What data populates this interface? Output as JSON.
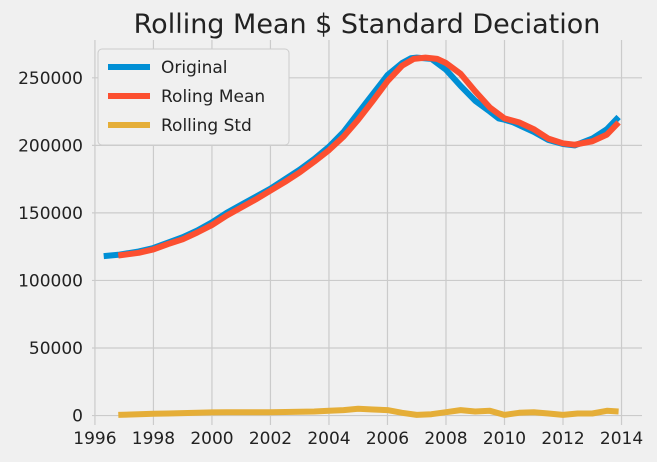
{
  "chart_data": {
    "type": "line",
    "title": "Rolling Mean $ Standard Deciation",
    "xlabel": "",
    "ylabel": "",
    "xlim": [
      1995.9,
      2014.7
    ],
    "ylim": [
      -7000,
      278000
    ],
    "grid": true,
    "legend_position": "upper-left",
    "xticks": [
      1996,
      1998,
      2000,
      2002,
      2004,
      2006,
      2008,
      2010,
      2012,
      2014
    ],
    "xtick_labels": [
      "1996",
      "1998",
      "2000",
      "2002",
      "2004",
      "2006",
      "2008",
      "2010",
      "2012",
      "2014"
    ],
    "yticks": [
      0,
      50000,
      100000,
      150000,
      200000,
      250000
    ],
    "ytick_labels": [
      "0",
      "50000",
      "100000",
      "150000",
      "200000",
      "250000"
    ],
    "series": [
      {
        "name": "Original",
        "color": "#008fd5",
        "x": [
          1996.3,
          1996.8,
          1997.5,
          1998.0,
          1998.5,
          1999.0,
          1999.5,
          2000.0,
          2000.5,
          2001.0,
          2001.5,
          2002.0,
          2002.5,
          2003.0,
          2003.5,
          2004.0,
          2004.5,
          2005.0,
          2005.5,
          2006.0,
          2006.5,
          2006.8,
          2007.0,
          2007.5,
          2008.0,
          2008.5,
          2009.0,
          2009.5,
          2009.8,
          2010.0,
          2010.3,
          2010.6,
          2011.0,
          2011.5,
          2012.0,
          2012.4,
          2013.0,
          2013.5,
          2013.9
        ],
        "y": [
          118000,
          119000,
          121500,
          124000,
          128000,
          132000,
          137000,
          143000,
          150000,
          156000,
          162000,
          168000,
          175000,
          182000,
          190000,
          199000,
          210000,
          224000,
          238000,
          252000,
          261000,
          264500,
          265000,
          264000,
          256000,
          244000,
          233000,
          225000,
          220000,
          219000,
          217000,
          214000,
          210000,
          204000,
          201000,
          200000,
          205000,
          212000,
          221000
        ]
      },
      {
        "name": "Roling Mean",
        "color": "#fc4f30",
        "x": [
          1996.8,
          1997.5,
          1998.0,
          1998.5,
          1999.0,
          1999.5,
          2000.0,
          2000.5,
          2001.0,
          2001.5,
          2002.0,
          2002.5,
          2003.0,
          2003.5,
          2004.0,
          2004.5,
          2005.0,
          2005.5,
          2006.0,
          2006.5,
          2006.9,
          2007.3,
          2007.7,
          2008.0,
          2008.5,
          2009.0,
          2009.5,
          2010.0,
          2010.5,
          2011.0,
          2011.5,
          2012.0,
          2012.4,
          2013.0,
          2013.5,
          2013.9
        ],
        "y": [
          118500,
          120500,
          123000,
          127000,
          130500,
          135500,
          141000,
          148000,
          154000,
          160000,
          166500,
          173000,
          180000,
          188000,
          196500,
          206500,
          219000,
          233000,
          247500,
          259000,
          264000,
          265000,
          264000,
          261000,
          253000,
          240000,
          228000,
          220000,
          217000,
          212000,
          205000,
          201500,
          200500,
          203000,
          208000,
          217000
        ]
      },
      {
        "name": "Rolling Std",
        "color": "#e5ae38",
        "x": [
          1996.8,
          1997.5,
          1998.0,
          1998.5,
          1999.0,
          1999.5,
          2000.0,
          2000.5,
          2001.0,
          2001.5,
          2002.0,
          2002.5,
          2003.0,
          2003.5,
          2004.0,
          2004.5,
          2005.0,
          2005.5,
          2006.0,
          2006.5,
          2007.0,
          2007.5,
          2008.0,
          2008.5,
          2009.0,
          2009.5,
          2010.0,
          2010.5,
          2011.0,
          2011.5,
          2012.0,
          2012.5,
          2013.0,
          2013.5,
          2013.9
        ],
        "y": [
          500,
          1000,
          1300,
          1500,
          1800,
          2000,
          2300,
          2400,
          2400,
          2500,
          2500,
          2600,
          2800,
          3000,
          3500,
          4000,
          5000,
          4500,
          4000,
          2000,
          500,
          1000,
          2500,
          4000,
          3000,
          3500,
          500,
          2000,
          2500,
          1500,
          500,
          1500,
          1500,
          3500,
          3000
        ]
      }
    ]
  }
}
